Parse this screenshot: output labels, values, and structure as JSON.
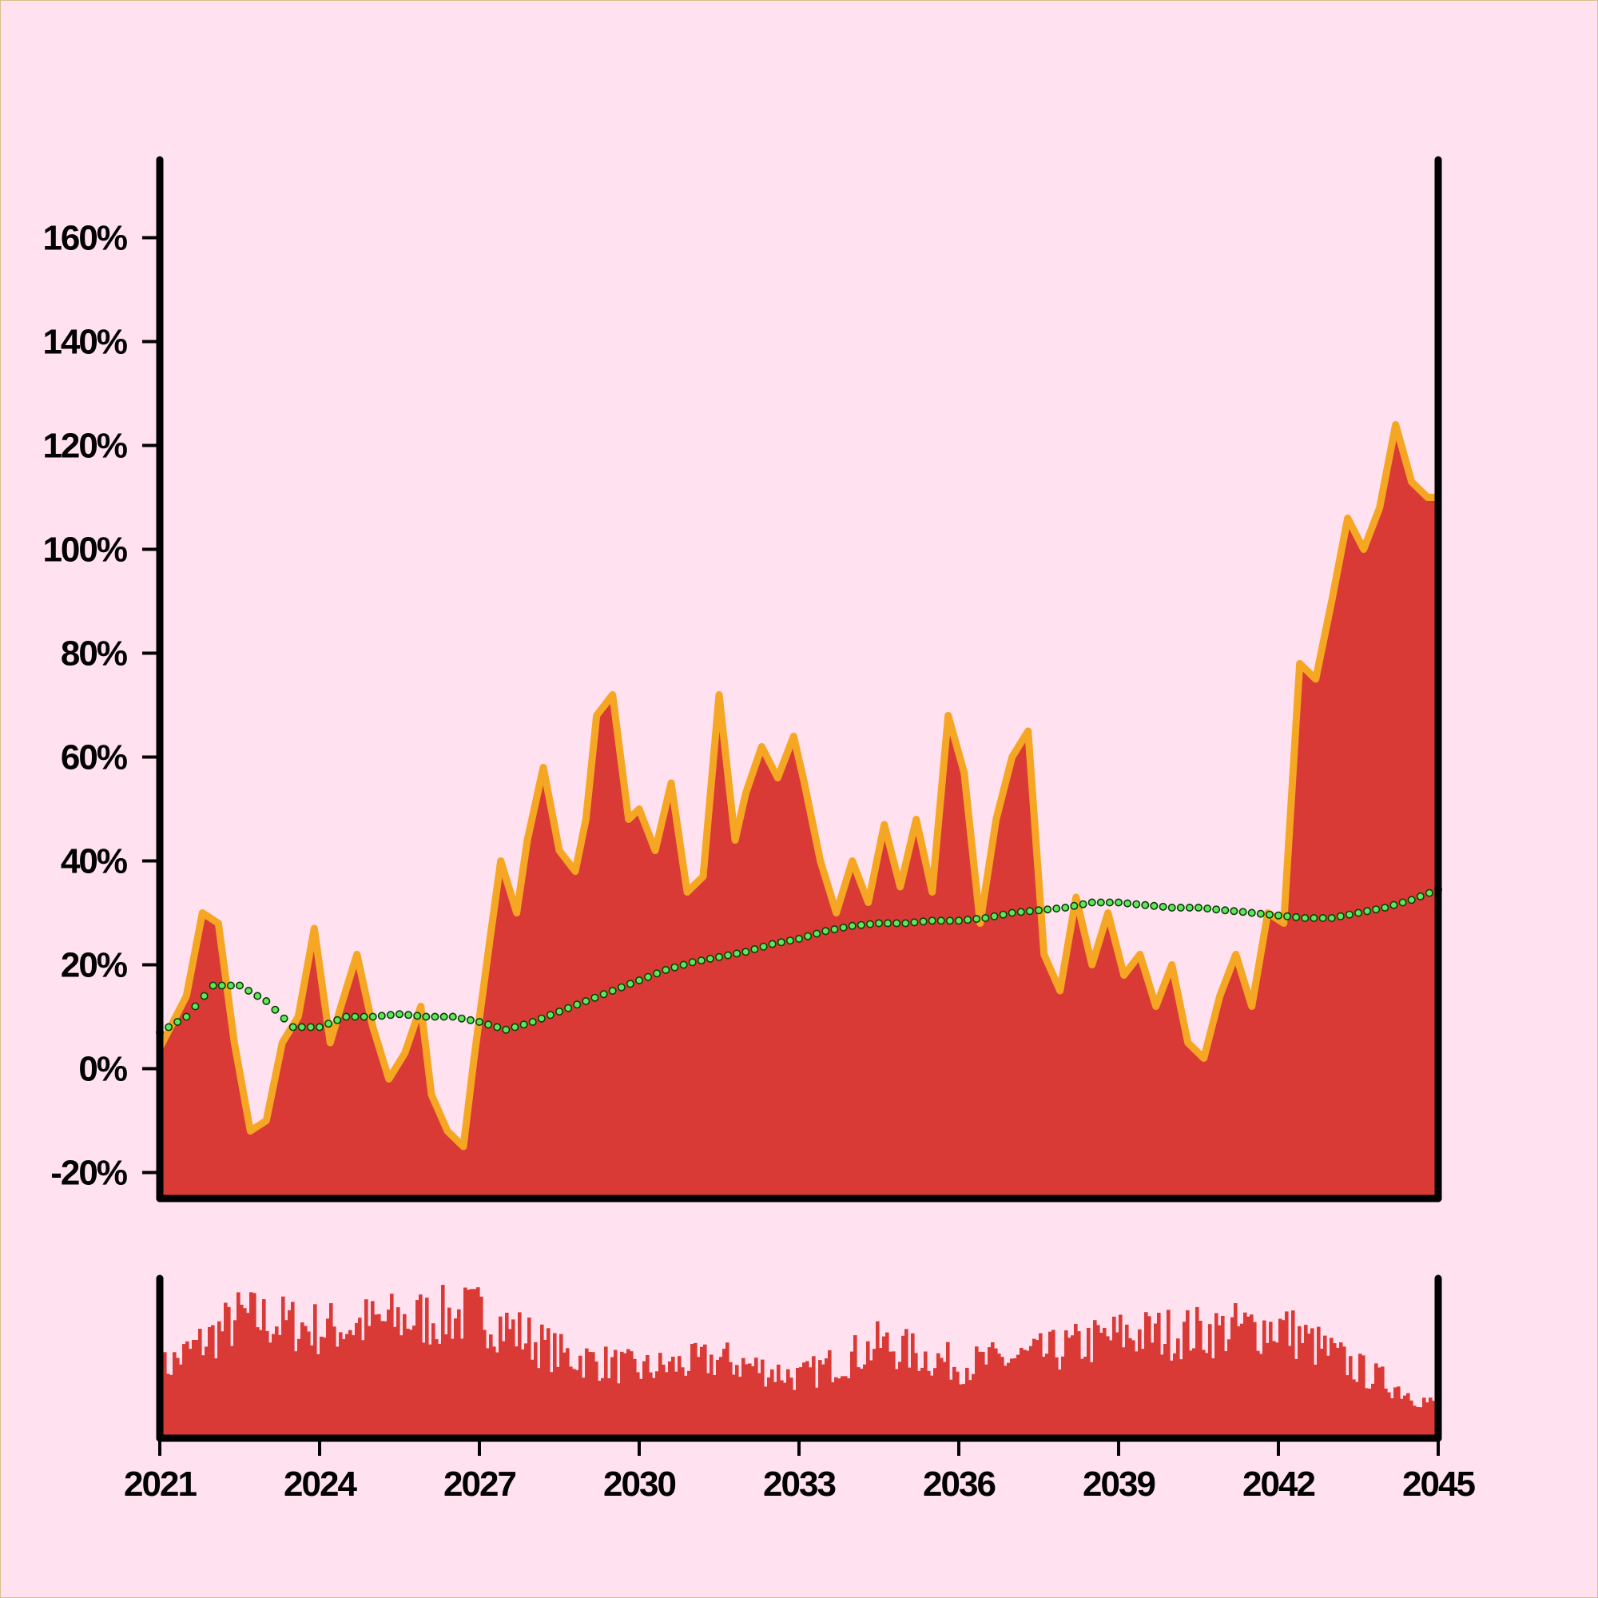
{
  "chart_data": {
    "type": "area",
    "title": "",
    "xlabel": "",
    "ylabel": "",
    "xlim": [
      2021,
      2045
    ],
    "ylim": [
      -0.25,
      1.75
    ],
    "y_ticks": [
      -0.2,
      0,
      0.2,
      0.4,
      0.6,
      0.8,
      1.0,
      1.2,
      1.4,
      1.6
    ],
    "y_tick_labels": [
      "-20%",
      "0%",
      "20%",
      "40%",
      "60%",
      "80%",
      "100%",
      "120%",
      "140%",
      "160%"
    ],
    "x_ticks": [
      2021,
      2024,
      2027,
      2030,
      2033,
      2036,
      2039,
      2042,
      2045
    ],
    "x_tick_labels": [
      "2021",
      "2024",
      "2027",
      "2030",
      "2033",
      "2036",
      "2039",
      "2042",
      "2045"
    ],
    "grid": false,
    "legend": "none",
    "colors": {
      "background": "#ffe1ef",
      "area_fill": "#d93a35",
      "area_edge": "#f5a623",
      "trend_marker": "#5ee85a",
      "trend_marker_edge": "#0b3d0b",
      "volume_bars": "#d93a35",
      "axis": "#000000"
    },
    "series": [
      {
        "kind": "area",
        "x": [
          2021.0,
          2021.5,
          2021.8,
          2022.1,
          2022.4,
          2022.7,
          2023.0,
          2023.3,
          2023.6,
          2023.9,
          2024.2,
          2024.4,
          2024.7,
          2025.0,
          2025.3,
          2025.6,
          2025.9,
          2026.1,
          2026.4,
          2026.7,
          2026.9,
          2027.2,
          2027.4,
          2027.7,
          2027.9,
          2028.2,
          2028.5,
          2028.8,
          2029.0,
          2029.2,
          2029.5,
          2029.8,
          2030.0,
          2030.3,
          2030.6,
          2030.9,
          2031.2,
          2031.5,
          2031.8,
          2032.0,
          2032.3,
          2032.6,
          2032.9,
          2033.1,
          2033.4,
          2033.7,
          2034.0,
          2034.3,
          2034.6,
          2034.9,
          2035.2,
          2035.5,
          2035.8,
          2036.1,
          2036.4,
          2036.7,
          2037.0,
          2037.3,
          2037.6,
          2037.9,
          2038.2,
          2038.5,
          2038.8,
          2039.1,
          2039.4,
          2039.7,
          2040.0,
          2040.3,
          2040.6,
          2040.9,
          2041.2,
          2041.5,
          2041.8,
          2042.1,
          2042.4,
          2042.7,
          2043.0,
          2043.3,
          2043.6,
          2043.9,
          2044.2,
          2044.5,
          2044.8
        ],
        "values": [
          0.04,
          0.14,
          0.3,
          0.28,
          0.05,
          -0.12,
          -0.1,
          0.05,
          0.1,
          0.27,
          0.05,
          0.12,
          0.22,
          0.08,
          -0.02,
          0.03,
          0.12,
          -0.05,
          -0.12,
          -0.15,
          0.02,
          0.25,
          0.4,
          0.3,
          0.44,
          0.58,
          0.42,
          0.38,
          0.48,
          0.68,
          0.72,
          0.48,
          0.5,
          0.42,
          0.55,
          0.34,
          0.37,
          0.72,
          0.44,
          0.53,
          0.62,
          0.56,
          0.64,
          0.55,
          0.4,
          0.3,
          0.4,
          0.32,
          0.47,
          0.35,
          0.48,
          0.34,
          0.68,
          0.57,
          0.28,
          0.48,
          0.6,
          0.65,
          0.22,
          0.15,
          0.33,
          0.2,
          0.3,
          0.18,
          0.22,
          0.12,
          0.2,
          0.05,
          0.02,
          0.14,
          0.22,
          0.12,
          0.3,
          0.28,
          0.78,
          0.75,
          0.9,
          1.06,
          1.0,
          1.08,
          1.24,
          1.13,
          1.1
        ]
      },
      {
        "kind": "trend_markers",
        "x": [
          2021.0,
          2021.5,
          2022.0,
          2022.5,
          2023.0,
          2023.5,
          2024.0,
          2024.5,
          2025.0,
          2025.5,
          2026.0,
          2026.5,
          2027.0,
          2027.5,
          2028.0,
          2028.5,
          2029.0,
          2029.5,
          2030.0,
          2030.5,
          2031.0,
          2031.5,
          2032.0,
          2032.5,
          2033.0,
          2033.5,
          2034.0,
          2034.5,
          2035.0,
          2035.5,
          2036.0,
          2036.5,
          2037.0,
          2037.5,
          2038.0,
          2038.5,
          2039.0,
          2039.5,
          2040.0,
          2040.5,
          2041.0,
          2041.5,
          2042.0,
          2042.5,
          2043.0,
          2043.5,
          2044.0,
          2044.5,
          2045.0
        ],
        "values": [
          0.07,
          0.1,
          0.16,
          0.16,
          0.13,
          0.08,
          0.08,
          0.1,
          0.1,
          0.105,
          0.1,
          0.1,
          0.09,
          0.075,
          0.09,
          0.11,
          0.13,
          0.15,
          0.17,
          0.19,
          0.205,
          0.215,
          0.225,
          0.24,
          0.25,
          0.265,
          0.275,
          0.28,
          0.28,
          0.285,
          0.285,
          0.29,
          0.3,
          0.305,
          0.31,
          0.32,
          0.32,
          0.315,
          0.31,
          0.31,
          0.305,
          0.3,
          0.295,
          0.29,
          0.29,
          0.3,
          0.31,
          0.325,
          0.345
        ]
      },
      {
        "kind": "volume_bars",
        "x_range": [
          2021,
          2045
        ],
        "envelope_x": [
          2021.0,
          2022.5,
          2024.0,
          2025.5,
          2027.0,
          2028.5,
          2030.0,
          2031.5,
          2033.0,
          2034.5,
          2036.0,
          2037.5,
          2039.0,
          2040.5,
          2042.0,
          2043.5,
          2045.0
        ],
        "envelope_values": [
          0.45,
          0.8,
          0.72,
          0.78,
          0.82,
          0.55,
          0.45,
          0.52,
          0.4,
          0.62,
          0.48,
          0.55,
          0.68,
          0.7,
          0.74,
          0.45,
          0.2
        ]
      }
    ]
  }
}
